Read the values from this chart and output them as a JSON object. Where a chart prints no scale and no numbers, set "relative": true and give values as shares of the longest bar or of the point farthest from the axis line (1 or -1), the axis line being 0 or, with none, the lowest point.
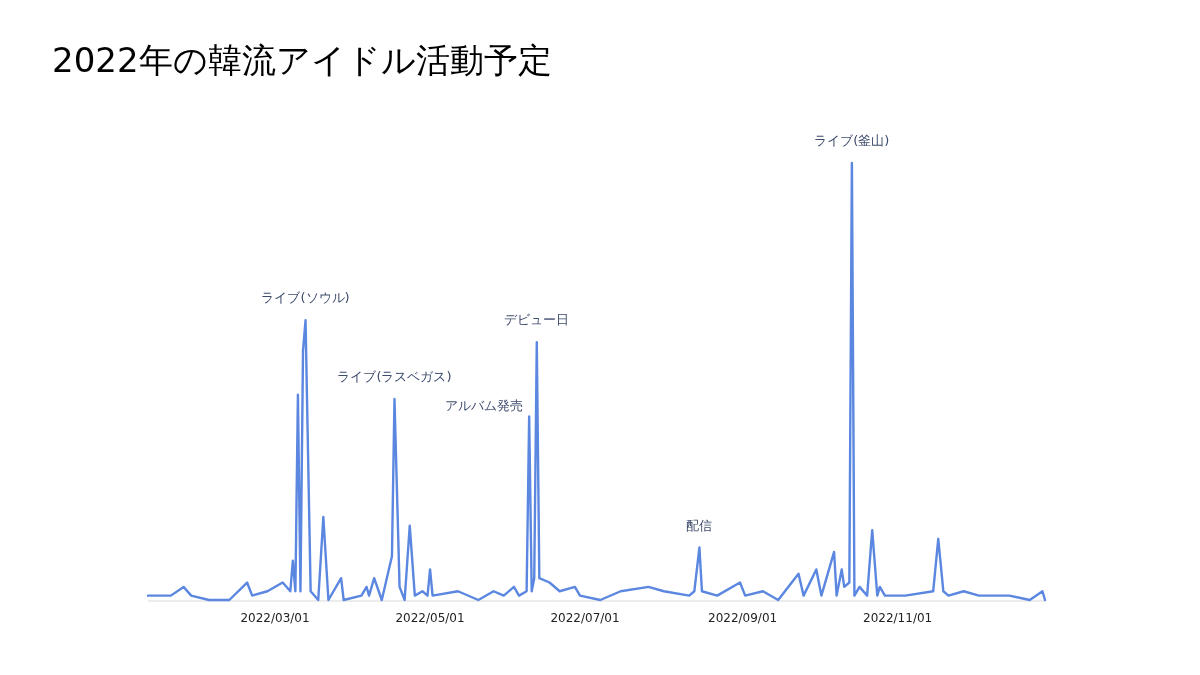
{
  "chart_data": {
    "type": "line",
    "title": "2022年の韓流アイドル活動予定",
    "relative": true,
    "grid": false,
    "legend": false,
    "marker": "none",
    "line_style": "solid",
    "xlim": [
      "2022-01-10",
      "2022-12-29"
    ],
    "xticks": [
      {
        "value": "2022-03-01",
        "label": "2022/03/01"
      },
      {
        "value": "2022-05-01",
        "label": "2022/05/01"
      },
      {
        "value": "2022-07-01",
        "label": "2022/07/01"
      },
      {
        "value": "2022-09-01",
        "label": "2022/09/01"
      },
      {
        "value": "2022-11-01",
        "label": "2022/11/01"
      }
    ],
    "x": [
      "2022-01-10",
      "2022-01-14",
      "2022-01-19",
      "2022-01-24",
      "2022-01-27",
      "2022-02-03",
      "2022-02-11",
      "2022-02-18",
      "2022-02-20",
      "2022-02-26",
      "2022-03-04",
      "2022-03-07",
      "2022-03-08",
      "2022-03-09",
      "2022-03-10",
      "2022-03-11",
      "2022-03-12",
      "2022-03-13",
      "2022-03-15",
      "2022-03-18",
      "2022-03-20",
      "2022-03-22",
      "2022-03-27",
      "2022-03-28",
      "2022-04-04",
      "2022-04-06",
      "2022-04-07",
      "2022-04-09",
      "2022-04-12",
      "2022-04-16",
      "2022-04-17",
      "2022-04-19",
      "2022-04-21",
      "2022-04-23",
      "2022-04-25",
      "2022-04-28",
      "2022-04-30",
      "2022-05-01",
      "2022-05-02",
      "2022-05-12",
      "2022-05-20",
      "2022-05-26",
      "2022-05-30",
      "2022-06-03",
      "2022-06-05",
      "2022-06-08",
      "2022-06-09",
      "2022-06-10",
      "2022-06-11",
      "2022-06-12",
      "2022-06-13",
      "2022-06-17",
      "2022-06-21",
      "2022-06-27",
      "2022-06-29",
      "2022-07-07",
      "2022-07-15",
      "2022-07-26",
      "2022-08-01",
      "2022-08-11",
      "2022-08-13",
      "2022-08-15",
      "2022-08-16",
      "2022-08-22",
      "2022-08-31",
      "2022-09-02",
      "2022-09-09",
      "2022-09-15",
      "2022-09-23",
      "2022-09-25",
      "2022-09-30",
      "2022-10-02",
      "2022-10-07",
      "2022-10-08",
      "2022-10-10",
      "2022-10-11",
      "2022-10-13",
      "2022-10-14",
      "2022-10-15",
      "2022-10-17",
      "2022-10-20",
      "2022-10-22",
      "2022-10-24",
      "2022-10-25",
      "2022-10-27",
      "2022-11-04",
      "2022-11-15",
      "2022-11-17",
      "2022-11-19",
      "2022-11-21",
      "2022-11-27",
      "2022-12-03",
      "2022-12-15",
      "2022-12-23",
      "2022-12-28",
      "2022-12-29"
    ],
    "series": [
      {
        "color": "#5b87e0",
        "values": [
          0.01,
          0.01,
          0.01,
          0.03,
          0.01,
          0.0,
          0.0,
          0.04,
          0.01,
          0.02,
          0.04,
          0.02,
          0.09,
          0.02,
          0.47,
          0.02,
          0.57,
          0.64,
          0.02,
          0.0,
          0.19,
          0.0,
          0.05,
          0.0,
          0.01,
          0.03,
          0.01,
          0.05,
          0.0,
          0.1,
          0.46,
          0.03,
          0.0,
          0.17,
          0.01,
          0.02,
          0.01,
          0.07,
          0.01,
          0.02,
          0.0,
          0.02,
          0.01,
          0.03,
          0.01,
          0.02,
          0.42,
          0.02,
          0.05,
          0.59,
          0.05,
          0.04,
          0.02,
          0.03,
          0.01,
          0.0,
          0.02,
          0.03,
          0.02,
          0.01,
          0.02,
          0.12,
          0.02,
          0.01,
          0.04,
          0.01,
          0.02,
          0.0,
          0.06,
          0.01,
          0.07,
          0.01,
          0.11,
          0.01,
          0.07,
          0.03,
          0.04,
          1.0,
          0.01,
          0.03,
          0.01,
          0.16,
          0.01,
          0.03,
          0.01,
          0.01,
          0.02,
          0.14,
          0.02,
          0.01,
          0.02,
          0.01,
          0.01,
          0.0,
          0.02,
          0.0
        ]
      }
    ],
    "annotations": [
      {
        "text": "ライブ(ソウル)",
        "x": "2022-03-13",
        "y": 0.64
      },
      {
        "text": "ライブ(ラスベガス)",
        "x": "2022-04-17",
        "y": 0.46
      },
      {
        "text": "アルバム発売",
        "x": "2022-06-09",
        "y": 0.42
      },
      {
        "text": "デビュー日",
        "x": "2022-06-12",
        "y": 0.59
      },
      {
        "text": "配信",
        "x": "2022-08-15",
        "y": 0.12
      },
      {
        "text": "ライブ(釜山)",
        "x": "2022-10-14",
        "y": 1.0
      }
    ]
  }
}
